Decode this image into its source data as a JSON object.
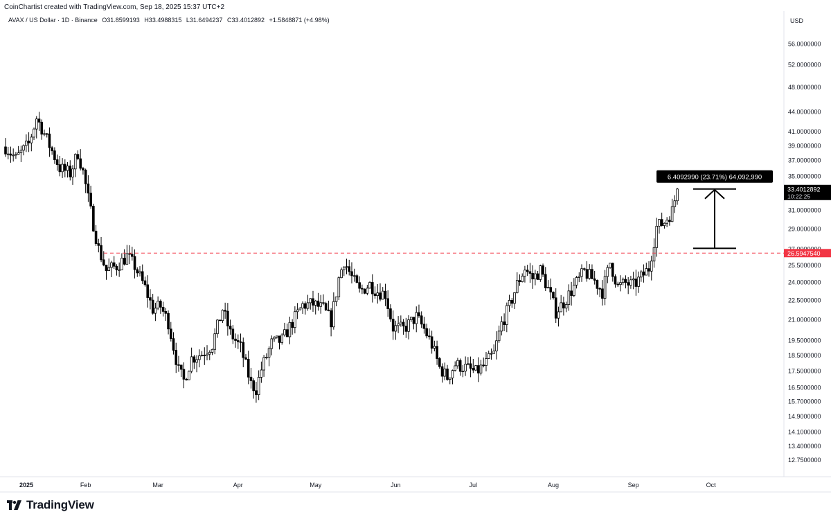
{
  "header": {
    "attribution": "CoinChartist created with TradingView.com, Sep 18, 2025 15:37 UTC+2",
    "symbol": "AVAX / US Dollar · 1D · Binance",
    "open": "O31.8599193",
    "high": "H33.4988315",
    "low": "L31.6494237",
    "close": "C33.4012892",
    "change": "+1.5848871 (+4.98%)"
  },
  "axis": {
    "currency": "USD",
    "price_labels": [
      "56.0000000",
      "52.0000000",
      "48.0000000",
      "44.0000000",
      "41.0000000",
      "39.0000000",
      "37.0000000",
      "35.0000000",
      "31.0000000",
      "29.0000000",
      "27.0000000",
      "25.5000000",
      "24.0000000",
      "22.5000000",
      "21.0000000",
      "19.5000000",
      "18.5000000",
      "17.5000000",
      "16.5000000",
      "15.7000000",
      "14.9000000",
      "14.1000000",
      "13.4000000",
      "12.7500000"
    ],
    "current_price": "33.4012892",
    "countdown": "10:22:25",
    "level_price": "26.5947540",
    "months": [
      "2025",
      "Feb",
      "Mar",
      "Apr",
      "May",
      "Jun",
      "Jul",
      "Aug",
      "Sep",
      "Oct"
    ]
  },
  "annotation": {
    "measure_label": "6.4092990 (23.71%) 64,092,990",
    "from_price": 27.05,
    "to_price": 33.4
  },
  "colors": {
    "candle": "#000000",
    "level_line": "#f23645",
    "label_bg": "#000000",
    "label_text": "#ffffff"
  },
  "brand": {
    "name": "TradingView",
    "logo": "tradingview-logo-icon"
  },
  "chart_data": {
    "type": "candlestick",
    "scale": "log",
    "ylim": [
      12.4,
      60
    ],
    "x_start": "2025-01-01",
    "x_end": "2025-10-18",
    "level_line": 26.594754,
    "series_close": [
      [
        "2025-01-01",
        38.8
      ],
      [
        "2025-01-05",
        37.2
      ],
      [
        "2025-01-10",
        39.2
      ],
      [
        "2025-01-13",
        43.0
      ],
      [
        "2025-01-15",
        41.5
      ],
      [
        "2025-01-18",
        39.0
      ],
      [
        "2025-01-22",
        36.0
      ],
      [
        "2025-01-26",
        35.3
      ],
      [
        "2025-01-29",
        38.0
      ],
      [
        "2025-01-31",
        35.5
      ],
      [
        "2025-02-03",
        30.8
      ],
      [
        "2025-02-06",
        27.0
      ],
      [
        "2025-02-09",
        25.0
      ],
      [
        "2025-02-13",
        25.4
      ],
      [
        "2025-02-17",
        26.3
      ],
      [
        "2025-02-20",
        25.4
      ],
      [
        "2025-02-24",
        23.5
      ],
      [
        "2025-02-27",
        21.8
      ],
      [
        "2025-03-02",
        22.0
      ],
      [
        "2025-03-05",
        20.8
      ],
      [
        "2025-03-09",
        17.5
      ],
      [
        "2025-03-11",
        16.9
      ],
      [
        "2025-03-14",
        18.3
      ],
      [
        "2025-03-18",
        18.6
      ],
      [
        "2025-03-22",
        19.2
      ],
      [
        "2025-03-26",
        21.8
      ],
      [
        "2025-03-29",
        20.0
      ],
      [
        "2025-04-02",
        19.0
      ],
      [
        "2025-04-06",
        16.7
      ],
      [
        "2025-04-08",
        16.4
      ],
      [
        "2025-04-10",
        17.6
      ],
      [
        "2025-04-14",
        19.3
      ],
      [
        "2025-04-18",
        19.5
      ],
      [
        "2025-04-22",
        20.8
      ],
      [
        "2025-04-26",
        22.1
      ],
      [
        "2025-04-30",
        22.2
      ],
      [
        "2025-05-04",
        21.8
      ],
      [
        "2025-05-07",
        20.9
      ],
      [
        "2025-05-10",
        24.3
      ],
      [
        "2025-05-12",
        25.9
      ],
      [
        "2025-05-15",
        24.4
      ],
      [
        "2025-05-18",
        23.2
      ],
      [
        "2025-05-22",
        23.8
      ],
      [
        "2025-05-25",
        23.2
      ],
      [
        "2025-05-28",
        23.0
      ],
      [
        "2025-05-31",
        20.4
      ],
      [
        "2025-06-04",
        20.3
      ],
      [
        "2025-06-09",
        21.2
      ],
      [
        "2025-06-12",
        20.3
      ],
      [
        "2025-06-15",
        19.2
      ],
      [
        "2025-06-18",
        17.7
      ],
      [
        "2025-06-21",
        17.1
      ],
      [
        "2025-06-24",
        17.9
      ],
      [
        "2025-06-28",
        17.7
      ],
      [
        "2025-07-02",
        17.4
      ],
      [
        "2025-07-05",
        17.8
      ],
      [
        "2025-07-09",
        18.6
      ],
      [
        "2025-07-12",
        20.7
      ],
      [
        "2025-07-15",
        22.0
      ],
      [
        "2025-07-18",
        23.8
      ],
      [
        "2025-07-21",
        25.2
      ],
      [
        "2025-07-24",
        24.3
      ],
      [
        "2025-07-27",
        25.0
      ],
      [
        "2025-07-30",
        23.4
      ],
      [
        "2025-08-02",
        21.6
      ],
      [
        "2025-08-05",
        22.3
      ],
      [
        "2025-08-09",
        23.6
      ],
      [
        "2025-08-13",
        24.9
      ],
      [
        "2025-08-17",
        24.1
      ],
      [
        "2025-08-20",
        23.2
      ],
      [
        "2025-08-23",
        25.7
      ],
      [
        "2025-08-26",
        23.6
      ],
      [
        "2025-08-29",
        23.9
      ],
      [
        "2025-09-01",
        23.7
      ],
      [
        "2025-09-04",
        24.4
      ],
      [
        "2025-09-07",
        25.2
      ],
      [
        "2025-09-10",
        29.2
      ],
      [
        "2025-09-13",
        29.7
      ],
      [
        "2025-09-16",
        30.9
      ],
      [
        "2025-09-18",
        33.4
      ]
    ]
  }
}
